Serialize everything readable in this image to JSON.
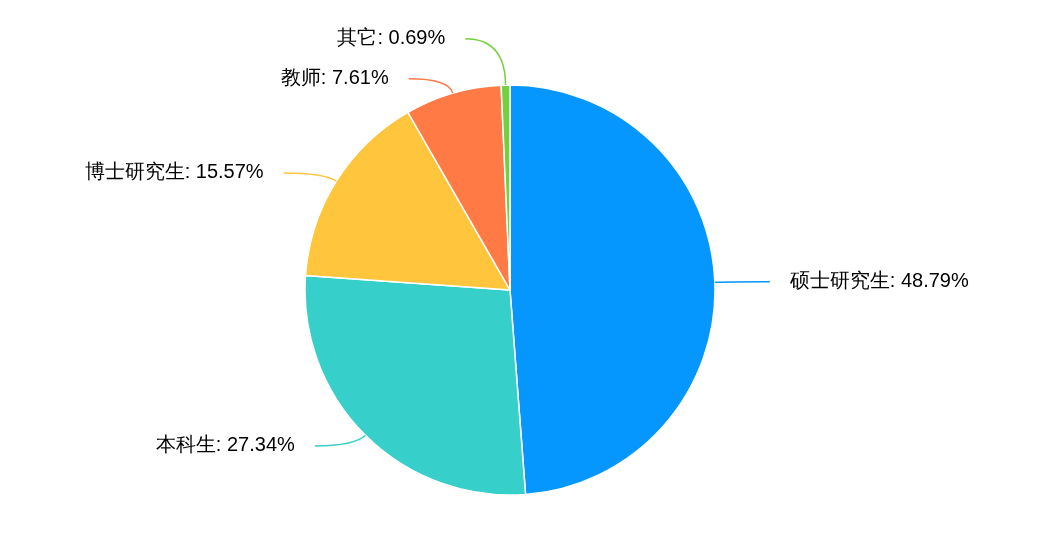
{
  "chart_data": {
    "type": "pie",
    "categories": [
      "硕士研究生",
      "本科生",
      "博士研究生",
      "教师",
      "其它"
    ],
    "values": [
      48.79,
      27.34,
      15.57,
      7.61,
      0.69
    ],
    "colors": [
      "#0596fe",
      "#36cfc9",
      "#ffc53d",
      "#ff7a45",
      "#73d13d"
    ],
    "value_labels": [
      "48.79%",
      "27.34%",
      "15.57%",
      "7.61%",
      "0.69%"
    ]
  }
}
